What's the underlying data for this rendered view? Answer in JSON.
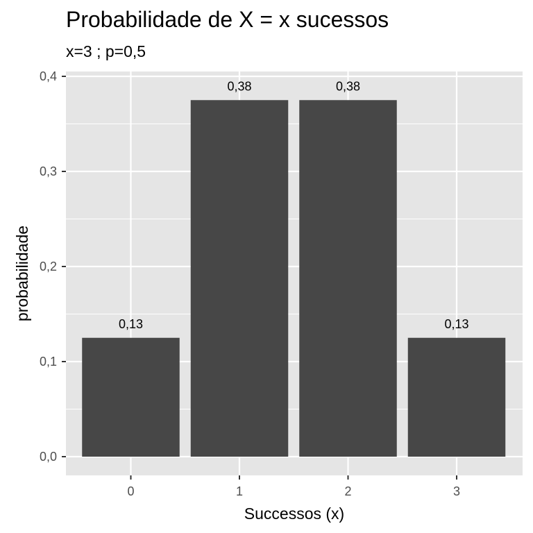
{
  "chart_data": {
    "type": "bar",
    "title": "Probabilidade de X = x sucessos",
    "subtitle": "x=3 ; p=0,5",
    "xlabel": "Successos (x)",
    "ylabel": "probabilidade",
    "categories": [
      "0",
      "1",
      "2",
      "3"
    ],
    "values": [
      0.125,
      0.375,
      0.375,
      0.125
    ],
    "data_labels": [
      "0,13",
      "0,38",
      "0,38",
      "0,13"
    ],
    "ylim": [
      -0.02,
      0.4
    ],
    "yticks": [
      0.0,
      0.1,
      0.2,
      0.3,
      0.4
    ],
    "ytick_labels": [
      "0,0",
      "0,1",
      "0,2",
      "0,3",
      "0,4"
    ],
    "grid": true,
    "legend": "none",
    "colors": {
      "bar": "#474747",
      "panel": "#e5e5e5",
      "grid": "#ffffff",
      "tick": "#333333",
      "text": "#000000",
      "tick_text": "#4d4d4d"
    }
  }
}
